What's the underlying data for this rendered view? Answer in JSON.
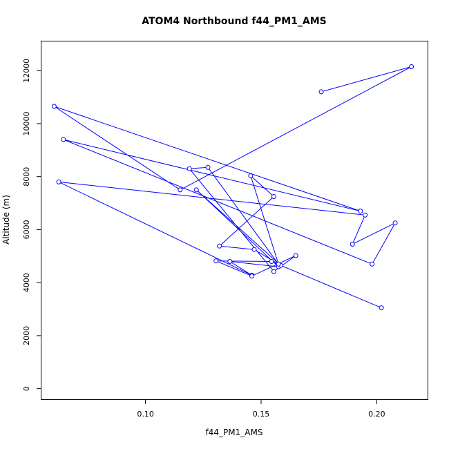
{
  "chart_data": {
    "type": "line",
    "title": "ATOM4 Northbound f44_PM1_AMS",
    "xlabel": "f44_PM1_AMS",
    "ylabel": "Altitude (m)",
    "xlim": [
      0.055,
      0.222
    ],
    "ylim": [
      -400,
      13100
    ],
    "xticks": [
      0.1,
      0.15,
      0.2
    ],
    "xtick_labels": [
      "0.10",
      "0.15",
      "0.20"
    ],
    "yticks": [
      0,
      2000,
      4000,
      6000,
      8000,
      10000,
      12000
    ],
    "ytick_labels": [
      "0",
      "2000",
      "4000",
      "6000",
      "8000",
      "10000",
      "12000"
    ],
    "grid": false,
    "series": [
      {
        "color": "#0000ff",
        "marker": "open-circle",
        "x": [
          0.176,
          0.215,
          0.115,
          0.0605,
          0.193,
          0.0645,
          0.198,
          0.208,
          0.1895,
          0.195,
          0.0625,
          0.146,
          0.1365,
          0.1575,
          0.122,
          0.1585,
          0.147,
          0.132,
          0.1555,
          0.1455,
          0.1575,
          0.127,
          0.119,
          0.1555,
          0.165,
          0.146,
          0.1305,
          0.1545,
          0.202
        ],
        "y": [
          11200,
          12150,
          7500,
          10650,
          6700,
          9400,
          4700,
          6250,
          5450,
          6550,
          7800,
          4280,
          4800,
          4600,
          7500,
          4650,
          5250,
          5380,
          7250,
          8030,
          4700,
          8350,
          8300,
          4420,
          5020,
          4250,
          4820,
          4800,
          3050
        ]
      }
    ]
  }
}
